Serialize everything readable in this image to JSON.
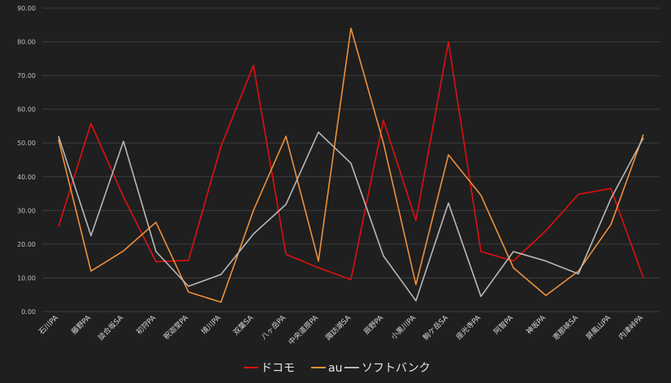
{
  "chart_data": {
    "type": "line",
    "categories": [
      "石川PA",
      "藤野PA",
      "談合坂SA",
      "初狩PA",
      "釈迦堂PA",
      "境川PA",
      "双葉SA",
      "八ヶ岳PA",
      "中央道原PA",
      "諏訪湖SA",
      "辰野PA",
      "小黒川PA",
      "駒ケ岳SA",
      "座光寺PA",
      "阿智PA",
      "神坂PA",
      "恵那峡SA",
      "屏風山PA",
      "内津峠PA"
    ],
    "series": [
      {
        "name": "ドコモ",
        "color": "#e01010",
        "values": [
          25.2,
          55.8,
          34.0,
          14.8,
          15.2,
          49.0,
          73.0,
          17.0,
          13.0,
          9.5,
          56.8,
          27.0,
          80.0,
          17.8,
          15.0,
          24.0,
          34.8,
          36.5,
          10.0
        ]
      },
      {
        "name": "au",
        "color": "#f0903a",
        "values": [
          51.0,
          12.0,
          18.0,
          26.5,
          5.8,
          2.8,
          30.0,
          52.0,
          15.0,
          84.0,
          50.0,
          8.0,
          46.5,
          34.5,
          13.0,
          4.8,
          12.0,
          25.8,
          52.5
        ]
      },
      {
        "name": "ソフトバンク",
        "color": "#b8b8b8",
        "values": [
          52.0,
          22.5,
          50.5,
          17.8,
          7.5,
          11.0,
          23.0,
          31.8,
          53.2,
          44.0,
          16.5,
          3.2,
          32.2,
          4.5,
          17.8,
          15.0,
          11.2,
          33.5,
          51.5
        ]
      }
    ],
    "yticks": [
      "0.00",
      "10.00",
      "20.00",
      "30.00",
      "40.00",
      "50.00",
      "60.00",
      "70.00",
      "80.00",
      "90.00"
    ],
    "ylim": [
      0,
      90
    ],
    "grid": true,
    "legend": "bottom"
  }
}
